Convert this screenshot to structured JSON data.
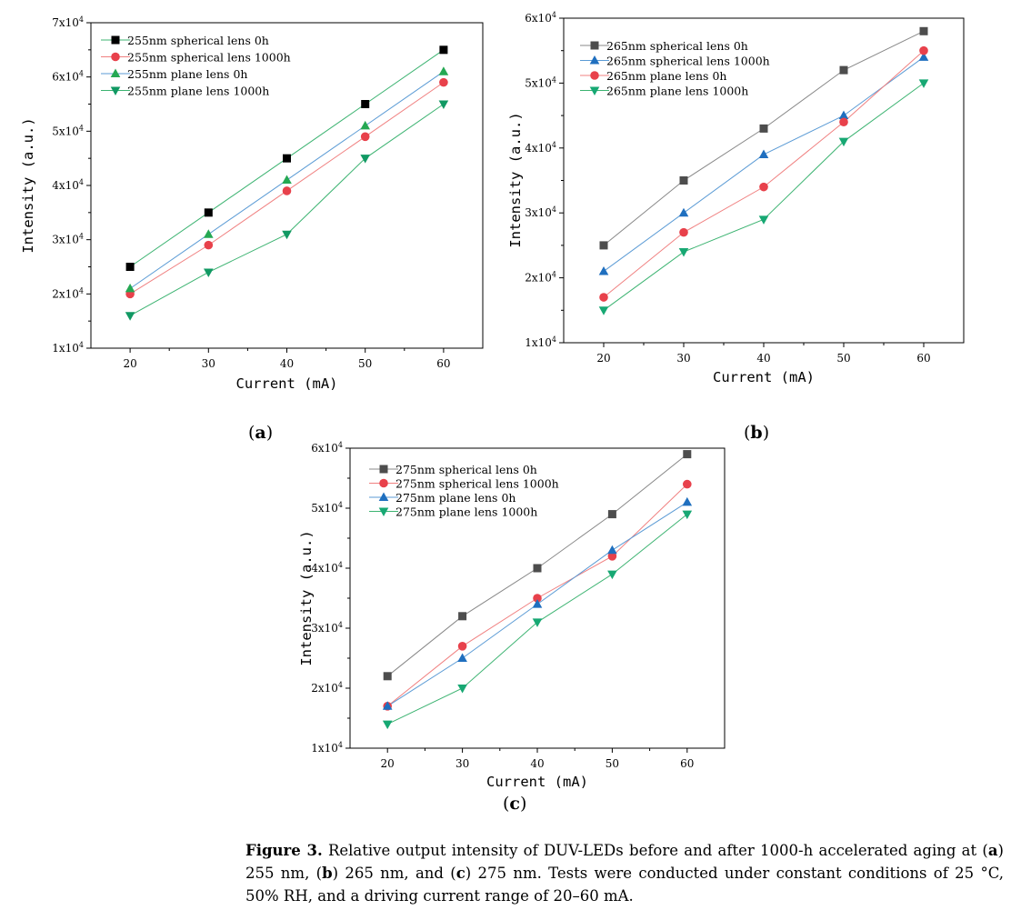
{
  "colors": {
    "black": "#000000",
    "gray": "#4d4d4d",
    "red": "#e8414b",
    "green": "#25a853",
    "green_dark": "#119963",
    "blue": "#1f6fbf",
    "teal": "#17a873",
    "line_gray": "#888888",
    "line_red": "#f08080",
    "line_green": "#3cb371",
    "line_blue": "#5b9bd5"
  },
  "panels": [
    {
      "label_open": "(",
      "label_letter": "a",
      "label_close": ")"
    },
    {
      "label_open": "(",
      "label_letter": "b",
      "label_close": ")"
    },
    {
      "label_open": "(",
      "label_letter": "c",
      "label_close": ")"
    }
  ],
  "chart_data": [
    {
      "type": "line",
      "panel": "a",
      "xlabel": "Current (mA)",
      "ylabel": "Intensity (a.u.)",
      "x": [
        20,
        30,
        40,
        50,
        60
      ],
      "xlim": [
        15,
        65
      ],
      "ylim": [
        10000,
        70000
      ],
      "x_ticks": [
        "20",
        "30",
        "40",
        "50",
        "60"
      ],
      "y_ticks": [
        {
          "mant": "1x10",
          "exp": "4",
          "value": 10000
        },
        {
          "mant": "2x10",
          "exp": "4",
          "value": 20000
        },
        {
          "mant": "3x10",
          "exp": "4",
          "value": 30000
        },
        {
          "mant": "4x10",
          "exp": "4",
          "value": 40000
        },
        {
          "mant": "5x10",
          "exp": "4",
          "value": 50000
        },
        {
          "mant": "6x10",
          "exp": "4",
          "value": 60000
        },
        {
          "mant": "7x10",
          "exp": "4",
          "value": 70000
        }
      ],
      "legend_position": "top-left",
      "series": [
        {
          "name": "255nm spherical lens 0h",
          "values": [
            25000,
            35000,
            45000,
            55000,
            65000
          ],
          "marker": "square",
          "color": "#000000",
          "line": "#3cb371"
        },
        {
          "name": "255nm spherical lens 1000h",
          "values": [
            20000,
            29000,
            39000,
            49000,
            59000
          ],
          "marker": "circle",
          "color": "#e8414b",
          "line": "#f08080"
        },
        {
          "name": "255nm plane lens 0h",
          "values": [
            21000,
            31000,
            41000,
            51000,
            61000
          ],
          "marker": "triangle-up",
          "color": "#25a853",
          "line": "#5b9bd5"
        },
        {
          "name": "255nm plane lens 1000h",
          "values": [
            16000,
            24000,
            31000,
            45000,
            55000
          ],
          "marker": "triangle-down",
          "color": "#119963",
          "line": "#3cb371"
        }
      ]
    },
    {
      "type": "line",
      "panel": "b",
      "xlabel": "Current (mA)",
      "ylabel": "Intensity (a.u.)",
      "x": [
        20,
        30,
        40,
        50,
        60
      ],
      "xlim": [
        15,
        65
      ],
      "ylim": [
        10000,
        60000
      ],
      "x_ticks": [
        "20",
        "30",
        "40",
        "50",
        "60"
      ],
      "y_ticks": [
        {
          "mant": "1x10",
          "exp": "4",
          "value": 10000
        },
        {
          "mant": "2x10",
          "exp": "4",
          "value": 20000
        },
        {
          "mant": "3x10",
          "exp": "4",
          "value": 30000
        },
        {
          "mant": "4x10",
          "exp": "4",
          "value": 40000
        },
        {
          "mant": "5x10",
          "exp": "4",
          "value": 50000
        },
        {
          "mant": "6x10",
          "exp": "4",
          "value": 60000
        }
      ],
      "legend_position": "top-left",
      "series": [
        {
          "name": "265nm spherical lens 0h",
          "values": [
            25000,
            35000,
            43000,
            52000,
            58000
          ],
          "marker": "square",
          "color": "#4d4d4d",
          "line": "#888888"
        },
        {
          "name": "265nm spherical lens 1000h",
          "values": [
            21000,
            30000,
            39000,
            45000,
            54000
          ],
          "marker": "triangle-up",
          "color": "#1f6fbf",
          "line": "#5b9bd5"
        },
        {
          "name": "265nm plane lens 0h",
          "values": [
            17000,
            27000,
            34000,
            44000,
            55000
          ],
          "marker": "circle",
          "color": "#e8414b",
          "line": "#f08080"
        },
        {
          "name": "265nm plane lens 1000h",
          "values": [
            15000,
            24000,
            29000,
            41000,
            50000
          ],
          "marker": "triangle-down",
          "color": "#17a873",
          "line": "#3cb371"
        }
      ]
    },
    {
      "type": "line",
      "panel": "c",
      "xlabel": "Current (mA)",
      "ylabel": "Intensity (a.u.)",
      "x": [
        20,
        30,
        40,
        50,
        60
      ],
      "xlim": [
        15,
        65
      ],
      "ylim": [
        10000,
        60000
      ],
      "x_ticks": [
        "20",
        "30",
        "40",
        "50",
        "60"
      ],
      "y_ticks": [
        {
          "mant": "1x10",
          "exp": "4",
          "value": 10000
        },
        {
          "mant": "2x10",
          "exp": "4",
          "value": 20000
        },
        {
          "mant": "3x10",
          "exp": "4",
          "value": 30000
        },
        {
          "mant": "4x10",
          "exp": "4",
          "value": 40000
        },
        {
          "mant": "5x10",
          "exp": "4",
          "value": 50000
        },
        {
          "mant": "6x10",
          "exp": "4",
          "value": 60000
        }
      ],
      "legend_position": "top-left",
      "series": [
        {
          "name": "275nm spherical lens 0h",
          "values": [
            22000,
            32000,
            40000,
            49000,
            59000
          ],
          "marker": "square",
          "color": "#4d4d4d",
          "line": "#888888"
        },
        {
          "name": "275nm spherical lens 1000h",
          "values": [
            17000,
            27000,
            35000,
            42000,
            54000
          ],
          "marker": "circle",
          "color": "#e8414b",
          "line": "#f08080"
        },
        {
          "name": "275nm plane lens 0h",
          "values": [
            17000,
            25000,
            34000,
            43000,
            51000
          ],
          "marker": "triangle-up",
          "color": "#1f6fbf",
          "line": "#5b9bd5"
        },
        {
          "name": "275nm plane lens 1000h",
          "values": [
            14000,
            20000,
            31000,
            39000,
            49000
          ],
          "marker": "triangle-down",
          "color": "#17a873",
          "line": "#3cb371"
        }
      ]
    }
  ],
  "caption": {
    "figure_label": "Figure 3.",
    "text_1": " Relative output intensity of DUV-LEDs before and after 1000-h accelerated aging at (",
    "a": "a",
    "text_2": ") 255 nm, (",
    "b": "b",
    "text_3": ") 265 nm, and (",
    "c": "c",
    "text_4": ") 275 nm. Tests were conducted under constant conditions of 25 °C, 50% RH, and a driving current range of 20–60 mA."
  }
}
